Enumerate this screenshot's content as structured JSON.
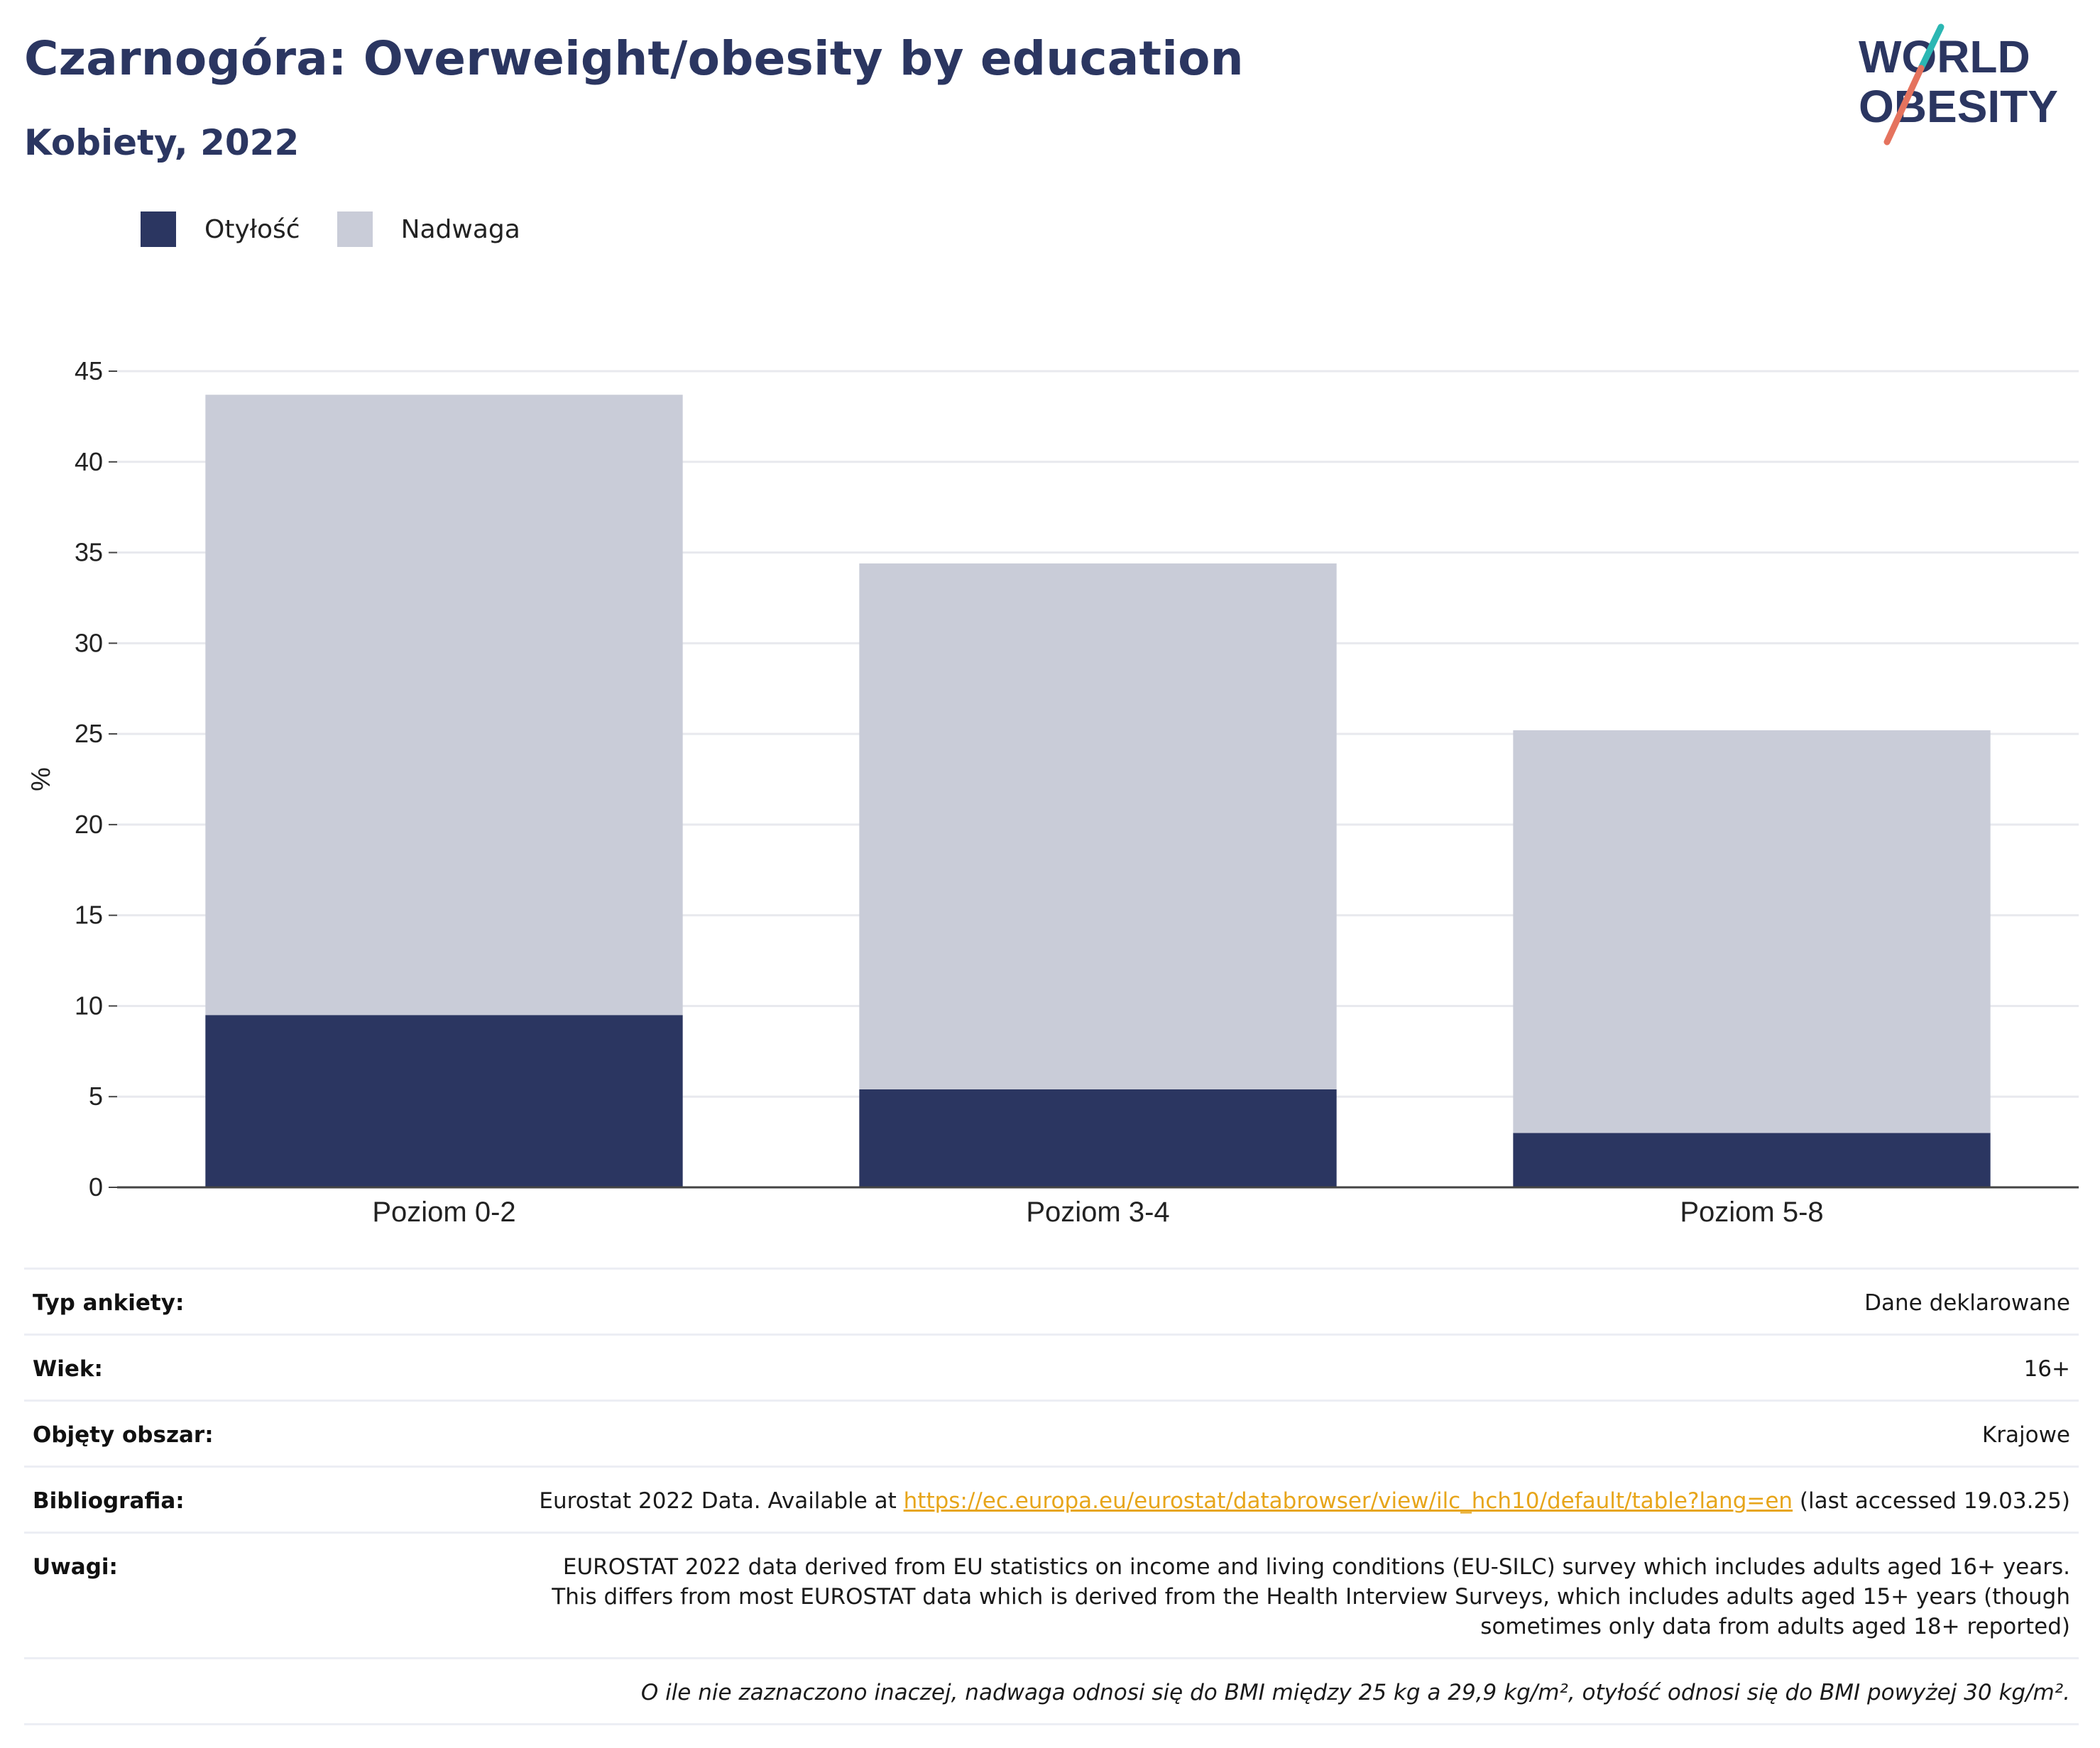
{
  "header": {
    "title": "Czarnogóra: Overweight/obesity by education",
    "subtitle": "Kobiety, 2022"
  },
  "logo": {
    "line1": "WORLD",
    "line2": "OBESITY",
    "accent_teal": "#2bb7b3",
    "accent_coral": "#e5735e",
    "color": "#2b3661"
  },
  "legend": [
    {
      "label": "Otyłość",
      "color": "#2b3661"
    },
    {
      "label": "Nadwaga",
      "color": "#c9ccd8"
    }
  ],
  "chart_data": {
    "type": "bar",
    "stacked": true,
    "categories": [
      "Poziom 0-2",
      "Poziom 3-4",
      "Poziom 5-8"
    ],
    "series": [
      {
        "name": "Otyłość",
        "values": [
          9.5,
          5.4,
          3.0
        ],
        "color": "#2b3661"
      },
      {
        "name": "Nadwaga",
        "values": [
          34.2,
          29.0,
          22.2
        ],
        "color": "#c9ccd8"
      }
    ],
    "ylabel": "%",
    "ylim": [
      0,
      45
    ],
    "yticks": [
      0,
      5,
      10,
      15,
      20,
      25,
      30,
      35,
      40,
      45
    ],
    "grid": true,
    "legend_position": "top-left"
  },
  "info": {
    "survey_type": {
      "label": "Typ ankiety:",
      "value": "Dane deklarowane"
    },
    "age": {
      "label": "Wiek:",
      "value": "16+"
    },
    "area": {
      "label": "Objęty obszar:",
      "value": "Krajowe"
    },
    "bibliography": {
      "label": "Bibliografia:",
      "text_before": "Eurostat 2022 Data. Available at ",
      "link": "https://ec.europa.eu/eurostat/databrowser/view/ilc_hch10/default/table?lang=en",
      "text_after": " (last accessed 19.03.25)"
    },
    "notes": {
      "label": "Uwagi:",
      "value": "EUROSTAT 2022 data derived from EU statistics on income and living conditions (EU-SILC) survey which includes adults aged 16+ years. This differs from most EUROSTAT data which is derived from the Health Interview Surveys, which includes adults aged 15+ years (though sometimes only data from adults aged 18+ reported)"
    },
    "footnote": "O ile nie zaznaczono inaczej, nadwaga odnosi się do BMI między 25 kg a 29,9 kg/m², otyłość odnosi się do BMI powyżej 30 kg/m²."
  }
}
